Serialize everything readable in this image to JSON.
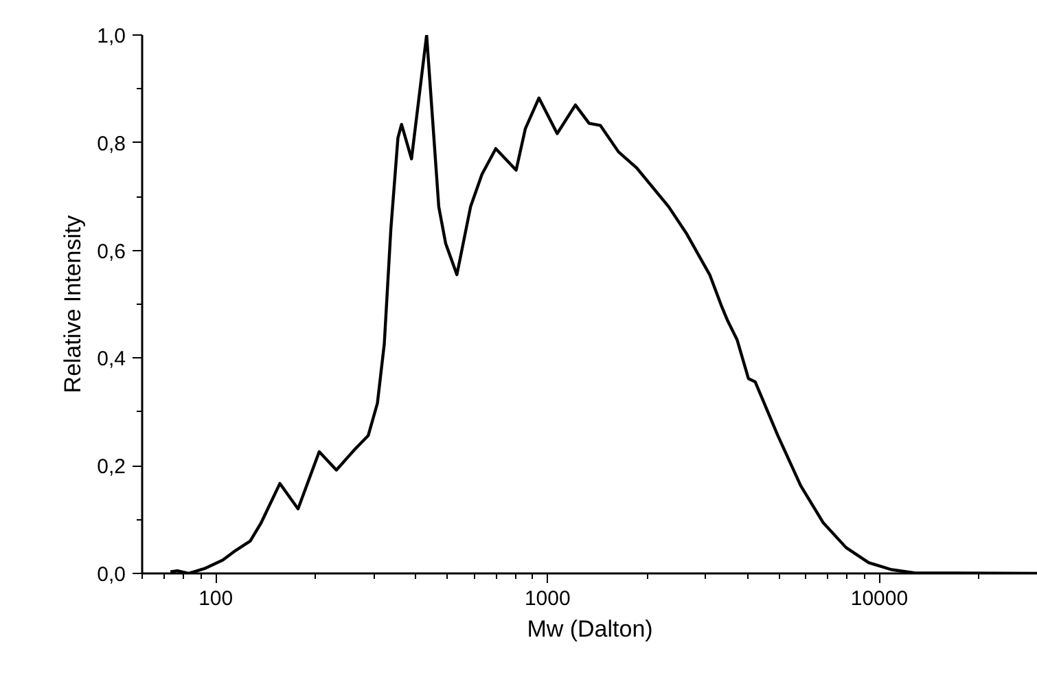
{
  "chart_data": {
    "type": "line",
    "xlabel": "Mw (Dalton)",
    "ylabel": "Relative Intensity",
    "log": "x",
    "grid": false,
    "marker": "none",
    "line_style": "solid",
    "xlim": [
      60,
      30000
    ],
    "ylim": [
      0,
      1.0
    ],
    "xticks": [
      {
        "value": 60,
        "label": null
      },
      {
        "value": 70,
        "label": null
      },
      {
        "value": 80,
        "label": null
      },
      {
        "value": 90,
        "label": null
      },
      100,
      {
        "value": 200,
        "label": null
      },
      {
        "value": 300,
        "label": null
      },
      {
        "value": 400,
        "label": null
      },
      {
        "value": 500,
        "label": null
      },
      {
        "value": 600,
        "label": null
      },
      {
        "value": 700,
        "label": null
      },
      {
        "value": 800,
        "label": null
      },
      {
        "value": 900,
        "label": null
      },
      1000,
      {
        "value": 2000,
        "label": null
      },
      {
        "value": 3000,
        "label": null
      },
      {
        "value": 4000,
        "label": null
      },
      {
        "value": 5000,
        "label": null
      },
      {
        "value": 6000,
        "label": null
      },
      {
        "value": 7000,
        "label": null
      },
      {
        "value": 8000,
        "label": null
      },
      {
        "value": 9000,
        "label": null
      },
      10000,
      {
        "value": 20000,
        "label": null
      }
    ],
    "yticks": [
      {
        "value": 0,
        "label": "0,0"
      },
      {
        "value": 0.1,
        "label": null
      },
      {
        "value": 0.2,
        "label": "0,2"
      },
      {
        "value": 0.3,
        "label": null
      },
      {
        "value": 0.4,
        "label": "0,4"
      },
      {
        "value": 0.5,
        "label": null
      },
      {
        "value": 0.6,
        "label": "0,6"
      },
      {
        "value": 0.7,
        "label": null
      },
      {
        "value": 0.8,
        "label": "0,8"
      },
      {
        "value": 0.9,
        "label": null
      },
      {
        "value": 1.0,
        "label": "1,0"
      }
    ],
    "series": [
      {
        "color": "#000000",
        "x": [
          73,
          76.6,
          82.7,
          92.5,
          105,
          115,
          127,
          137,
          156,
          177,
          205,
          231,
          262,
          288,
          307,
          322,
          337,
          354,
          363,
          389,
          432,
          470,
          493,
          533,
          586,
          634,
          698,
          804,
          857,
          942,
          1069,
          1213,
          1334,
          1443,
          1636,
          1857,
          2318,
          2630,
          2801,
          3085,
          3337,
          3491,
          3726,
          4030,
          4223,
          4944,
          5791,
          6776,
          7937,
          9289,
          10880,
          12750,
          30000
        ],
        "values": [
          0.003,
          0.005,
          0.0,
          0.009,
          0.025,
          0.043,
          0.06,
          0.094,
          0.167,
          0.12,
          0.226,
          0.192,
          0.23,
          0.256,
          0.316,
          0.426,
          0.639,
          0.809,
          0.834,
          0.77,
          1.0,
          0.681,
          0.613,
          0.555,
          0.681,
          0.741,
          0.789,
          0.749,
          0.826,
          0.883,
          0.817,
          0.87,
          0.836,
          0.832,
          0.783,
          0.753,
          0.681,
          0.63,
          0.6,
          0.554,
          0.498,
          0.469,
          0.434,
          0.362,
          0.356,
          0.256,
          0.163,
          0.094,
          0.048,
          0.02,
          0.007,
          0.001,
          0.0
        ]
      }
    ]
  }
}
